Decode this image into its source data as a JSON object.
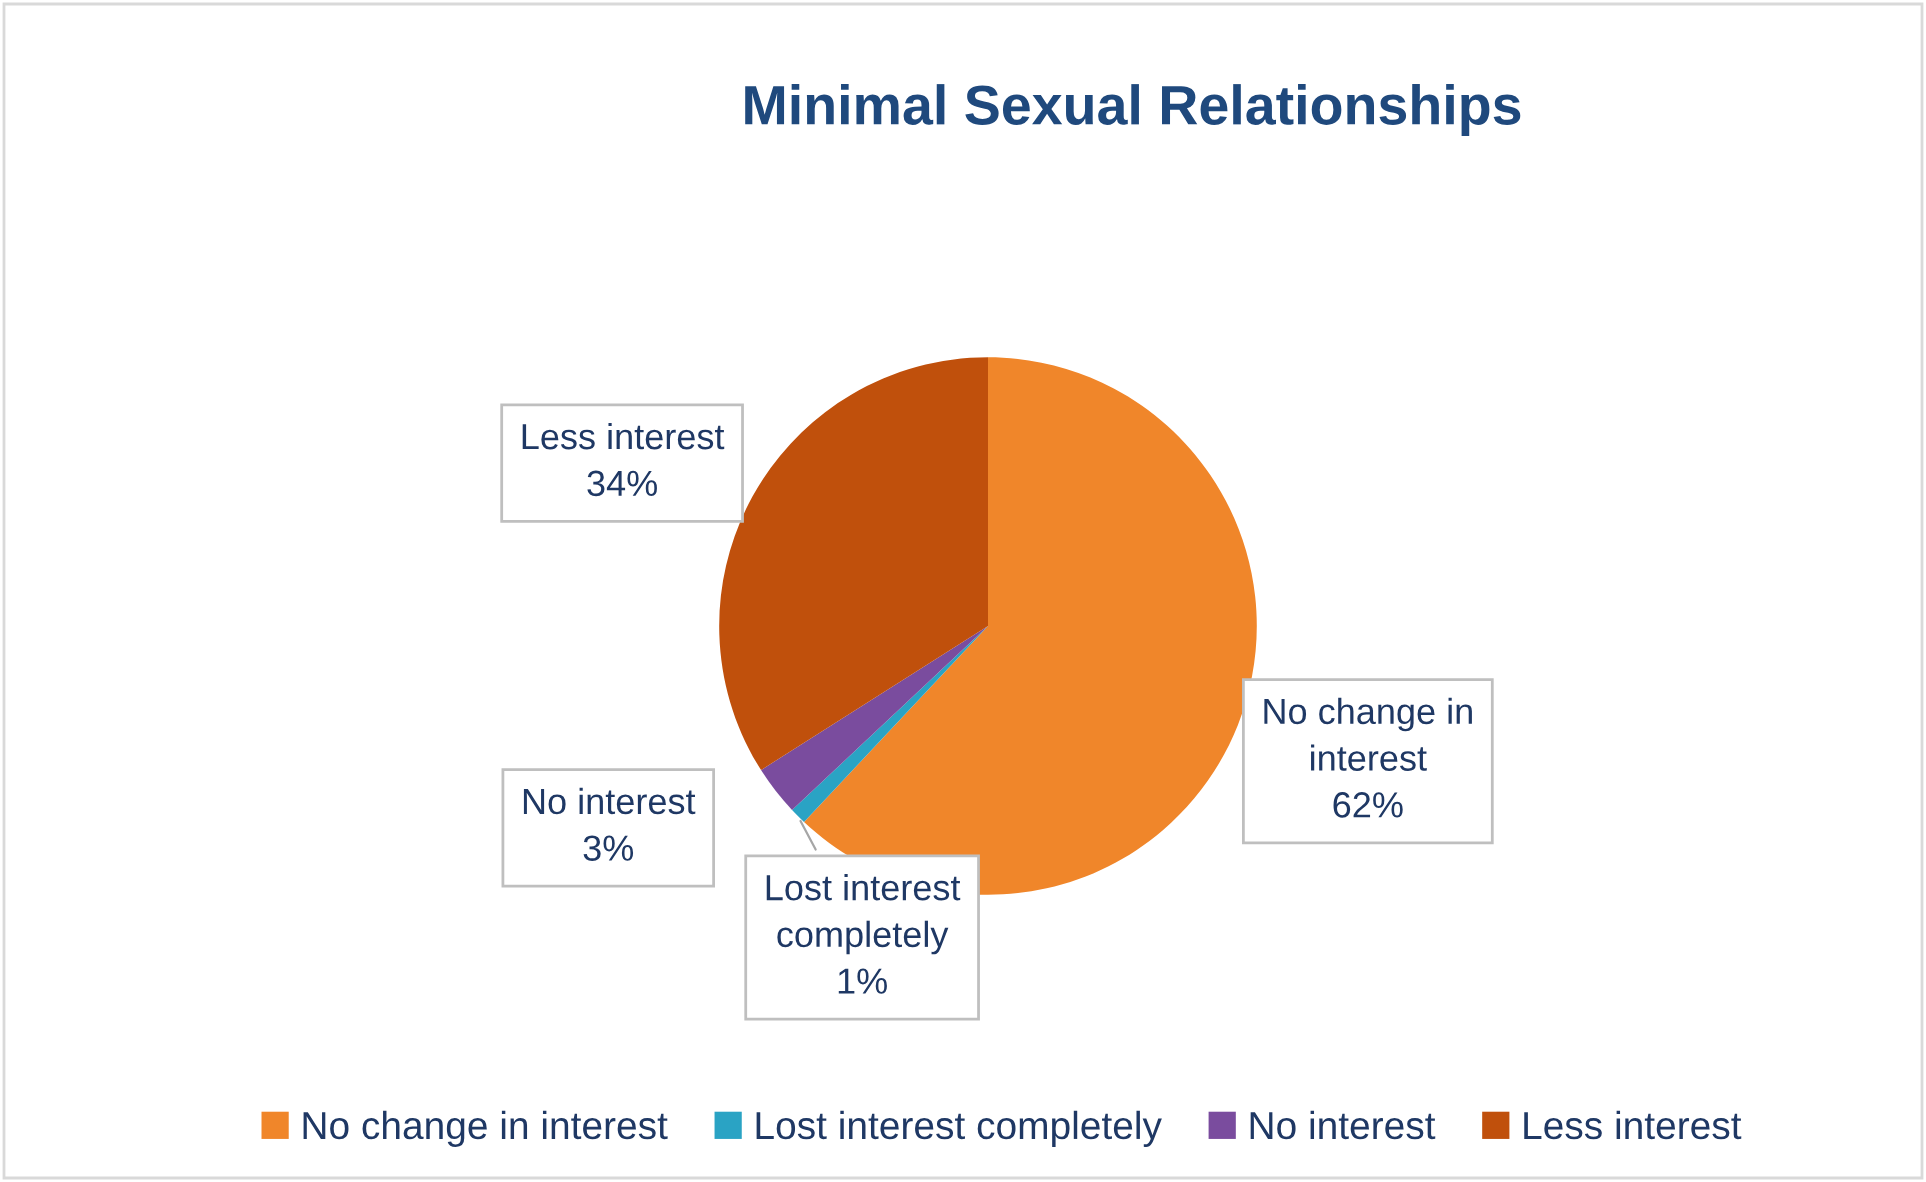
{
  "chart_data": {
    "type": "pie",
    "title": "Minimal Sexual Relationships",
    "categories": [
      "No change in interest",
      "Lost interest completely",
      "No interest",
      "Less interest"
    ],
    "values": [
      62,
      1,
      3,
      34
    ],
    "colors": [
      "#f0862a",
      "#2aa3c4",
      "#7a4c9e",
      "#c0500c"
    ],
    "value_labels": [
      "62%",
      "1%",
      "3%",
      "34%"
    ],
    "legend": "bottom"
  }
}
